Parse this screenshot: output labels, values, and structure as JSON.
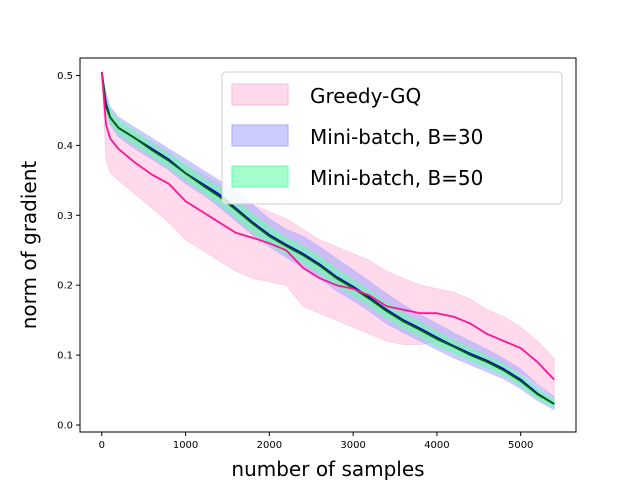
{
  "chart_data": {
    "type": "line",
    "title": "",
    "xlabel": "number of samples",
    "ylabel": "norm of gradient",
    "xlim": [
      -260,
      5660
    ],
    "ylim": [
      -0.01,
      0.525
    ],
    "xticks": [
      0,
      1000,
      2000,
      3000,
      4000,
      5000
    ],
    "yticks": [
      0.0,
      0.1,
      0.2,
      0.3,
      0.4,
      0.5
    ],
    "xtick_labels": [
      "0",
      "1000",
      "2000",
      "3000",
      "4000",
      "5000"
    ],
    "ytick_labels": [
      "0.0",
      "0.1",
      "0.2",
      "0.3",
      "0.4",
      "0.5"
    ],
    "legend_position": "upper right",
    "series": [
      {
        "name": "Greedy-GQ",
        "line_color": "#ff1493",
        "band_color": "#ffb6d9",
        "x": [
          0,
          50,
          100,
          200,
          400,
          600,
          800,
          1000,
          1200,
          1400,
          1600,
          1800,
          2000,
          2200,
          2400,
          2600,
          2800,
          3000,
          3200,
          3400,
          3600,
          3800,
          4000,
          4200,
          4400,
          4600,
          4800,
          5000,
          5200,
          5400
        ],
        "mean": [
          0.505,
          0.43,
          0.41,
          0.395,
          0.375,
          0.358,
          0.345,
          0.32,
          0.305,
          0.29,
          0.275,
          0.268,
          0.26,
          0.25,
          0.225,
          0.21,
          0.2,
          0.195,
          0.185,
          0.17,
          0.165,
          0.16,
          0.16,
          0.155,
          0.145,
          0.13,
          0.12,
          0.11,
          0.09,
          0.065
        ],
        "upper": [
          0.505,
          0.46,
          0.445,
          0.43,
          0.415,
          0.405,
          0.39,
          0.37,
          0.36,
          0.345,
          0.325,
          0.315,
          0.305,
          0.295,
          0.28,
          0.265,
          0.255,
          0.245,
          0.235,
          0.22,
          0.21,
          0.2,
          0.195,
          0.19,
          0.18,
          0.165,
          0.155,
          0.14,
          0.12,
          0.095
        ],
        "lower": [
          0.505,
          0.38,
          0.36,
          0.35,
          0.33,
          0.31,
          0.29,
          0.265,
          0.25,
          0.235,
          0.22,
          0.21,
          0.205,
          0.2,
          0.17,
          0.16,
          0.15,
          0.14,
          0.13,
          0.12,
          0.115,
          0.115,
          0.12,
          0.115,
          0.105,
          0.095,
          0.085,
          0.075,
          0.06,
          0.04
        ]
      },
      {
        "name": "Mini-batch, B=30",
        "line_color": "#0000cc",
        "band_color": "#aaaaff",
        "x": [
          0,
          50,
          100,
          200,
          400,
          600,
          800,
          1000,
          1200,
          1400,
          1600,
          1800,
          2000,
          2200,
          2400,
          2600,
          2800,
          3000,
          3200,
          3400,
          3600,
          3800,
          4000,
          4200,
          4400,
          4600,
          4800,
          5000,
          5200,
          5400
        ],
        "mean": [
          0.505,
          0.46,
          0.44,
          0.425,
          0.41,
          0.395,
          0.38,
          0.36,
          0.345,
          0.33,
          0.31,
          0.29,
          0.272,
          0.258,
          0.245,
          0.23,
          0.212,
          0.198,
          0.182,
          0.165,
          0.15,
          0.138,
          0.125,
          0.113,
          0.102,
          0.092,
          0.08,
          0.065,
          0.045,
          0.03
        ],
        "upper": [
          0.505,
          0.475,
          0.455,
          0.44,
          0.425,
          0.41,
          0.395,
          0.38,
          0.365,
          0.35,
          0.335,
          0.315,
          0.295,
          0.28,
          0.27,
          0.255,
          0.238,
          0.222,
          0.205,
          0.188,
          0.172,
          0.158,
          0.145,
          0.132,
          0.12,
          0.108,
          0.095,
          0.08,
          0.058,
          0.04
        ],
        "lower": [
          0.505,
          0.45,
          0.43,
          0.412,
          0.395,
          0.38,
          0.365,
          0.345,
          0.33,
          0.312,
          0.292,
          0.272,
          0.255,
          0.24,
          0.225,
          0.21,
          0.192,
          0.178,
          0.162,
          0.145,
          0.132,
          0.12,
          0.108,
          0.096,
          0.086,
          0.076,
          0.066,
          0.052,
          0.035,
          0.022
        ]
      },
      {
        "name": "Mini-batch, B=50",
        "line_color": "#006400",
        "band_color": "#66ffaa",
        "x": [
          0,
          50,
          100,
          200,
          400,
          600,
          800,
          1000,
          1200,
          1400,
          1600,
          1800,
          2000,
          2200,
          2400,
          2600,
          2800,
          3000,
          3200,
          3400,
          3600,
          3800,
          4000,
          4200,
          4400,
          4600,
          4800,
          5000,
          5200,
          5400
        ],
        "mean": [
          0.505,
          0.455,
          0.44,
          0.425,
          0.41,
          0.393,
          0.378,
          0.36,
          0.343,
          0.327,
          0.308,
          0.288,
          0.27,
          0.256,
          0.243,
          0.228,
          0.21,
          0.196,
          0.18,
          0.163,
          0.148,
          0.136,
          0.123,
          0.112,
          0.1,
          0.09,
          0.078,
          0.063,
          0.044,
          0.03
        ],
        "upper": [
          0.505,
          0.465,
          0.45,
          0.435,
          0.42,
          0.403,
          0.388,
          0.372,
          0.355,
          0.34,
          0.322,
          0.302,
          0.284,
          0.268,
          0.256,
          0.241,
          0.223,
          0.208,
          0.192,
          0.175,
          0.16,
          0.147,
          0.134,
          0.122,
          0.11,
          0.099,
          0.087,
          0.071,
          0.051,
          0.036
        ],
        "lower": [
          0.505,
          0.448,
          0.432,
          0.416,
          0.4,
          0.384,
          0.368,
          0.35,
          0.333,
          0.316,
          0.296,
          0.276,
          0.258,
          0.245,
          0.232,
          0.217,
          0.199,
          0.185,
          0.17,
          0.153,
          0.138,
          0.126,
          0.113,
          0.103,
          0.092,
          0.082,
          0.071,
          0.056,
          0.038,
          0.025
        ]
      }
    ]
  }
}
